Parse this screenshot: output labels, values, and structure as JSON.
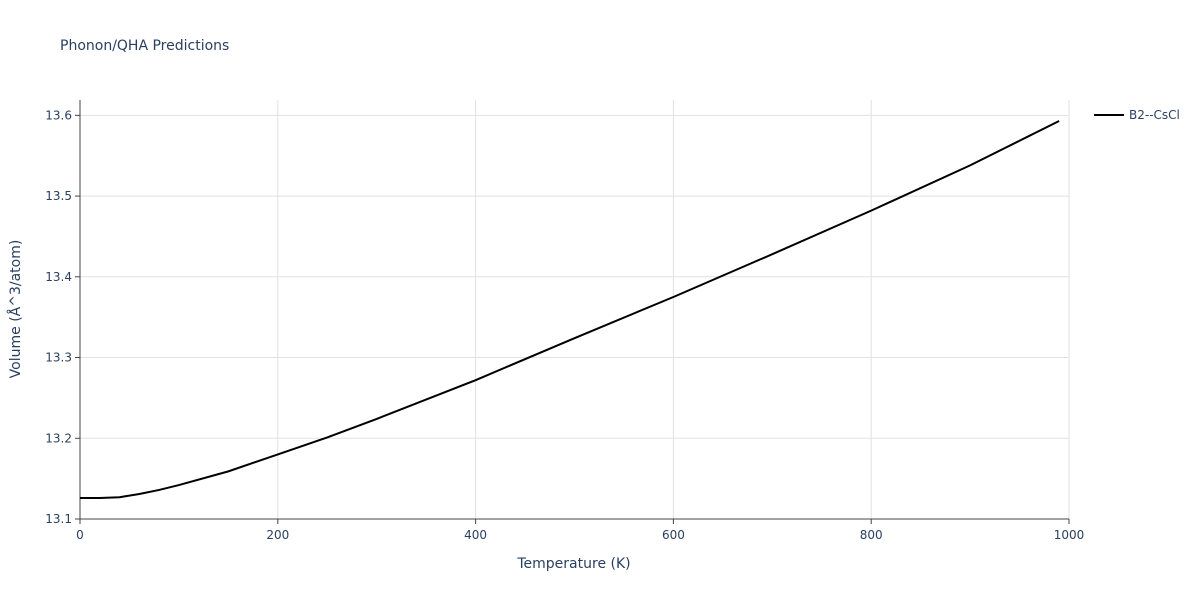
{
  "chart_data": {
    "type": "line",
    "title": "Phonon/QHA Predictions",
    "x_label": "Temperature (K)",
    "y_label": "Volume (Å^3/atom)",
    "x": [
      0,
      20,
      40,
      60,
      80,
      100,
      150,
      200,
      250,
      300,
      400,
      500,
      600,
      700,
      800,
      900,
      990
    ],
    "series": [
      {
        "name": "B2--CsCl",
        "color": "#000000",
        "values": [
          13.126,
          13.126,
          13.127,
          13.131,
          13.136,
          13.142,
          13.159,
          13.18,
          13.201,
          13.224,
          13.272,
          13.324,
          13.375,
          13.428,
          13.482,
          13.538,
          13.593
        ]
      }
    ],
    "xlim": [
      0,
      1000
    ],
    "xticks": [
      0,
      200,
      400,
      600,
      800,
      1000
    ],
    "ylim": [
      13.1,
      13.619
    ],
    "yticks": [
      13.1,
      13.2,
      13.3,
      13.4,
      13.5,
      13.6
    ],
    "grid": true,
    "legend": "right"
  }
}
